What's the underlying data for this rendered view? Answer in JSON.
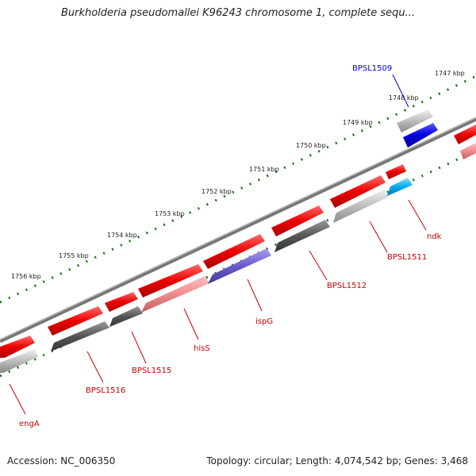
{
  "title": "Burkholderia pseudomallei K96243 chromosome 1, complete sequ...",
  "footer": {
    "accession": "Accession: NC_006350",
    "summary": "Topology: circular; Length: 4,074,542 bp; Genes: 3,468"
  },
  "colors": {
    "forward_gene": "#ee0000",
    "forward_gene_light": "#f08a8a",
    "reverse_gene_grey": "#bdbdbd",
    "reverse_gene_dark": "#555555",
    "highlight_blue": "#0000dd",
    "highlight_purple": "#6a5acd",
    "highlight_cyan": "#00aaee",
    "scale_green": "#117711",
    "backbone": "#888888",
    "label_red": "#cc0000",
    "label_blue": "#0000cc"
  },
  "scale_labels": [
    "1747 kbp",
    "1748 kbp",
    "1749 kbp",
    "1750 kbp",
    "1751 kbp",
    "1752 kbp",
    "1753 kbp",
    "1754 kbp",
    "1755 kbp",
    "1756 kbp"
  ],
  "gene_labels": [
    {
      "text": "BPSL1509",
      "color": "blue"
    },
    {
      "text": "ndk",
      "color": "red"
    },
    {
      "text": "BPSL1511",
      "color": "red"
    },
    {
      "text": "BPSL1512",
      "color": "red"
    },
    {
      "text": "ispG",
      "color": "red"
    },
    {
      "text": "hisS",
      "color": "red"
    },
    {
      "text": "BPSL1515",
      "color": "red"
    },
    {
      "text": "BPSL1516",
      "color": "red"
    },
    {
      "text": "engA",
      "color": "red"
    }
  ]
}
